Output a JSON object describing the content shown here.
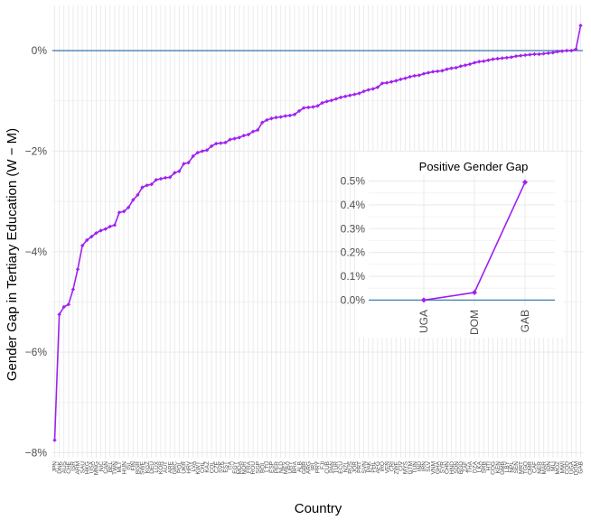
{
  "chart_data": [
    {
      "type": "line",
      "title": "",
      "xlabel": "Country",
      "ylabel": "Gender Gap in Tertiary Education (W − M)",
      "ylim": [
        -8.1,
        0.9
      ],
      "yticks": [
        0,
        -2,
        -4,
        -6,
        -8
      ],
      "ytick_labels": [
        "0%",
        "−2%",
        "−4%",
        "−6%",
        "−8%"
      ],
      "reference_line": 0,
      "grid": true,
      "colors": {
        "line": "#a020f0",
        "reference": "#4682b4",
        "grid": "#ebebeb"
      },
      "categories": [
        "JPN",
        "DNK",
        "AUS",
        "CHE",
        "ISR",
        "ARM",
        "SAU",
        "HKG",
        "USA",
        "MNG",
        "NIC",
        "CAN",
        "BEL",
        "TWN",
        "MLT",
        "HUN",
        "ISL",
        "FIN",
        "BGR",
        "SWE",
        "KGZ",
        "DEU",
        "LUX",
        "KOR",
        "AUT",
        "ARE",
        "GRC",
        "POL",
        "UKR",
        "HRV",
        "LVA",
        "KWT",
        "CHL",
        "KAZ",
        "COL",
        "CZE",
        "SVK",
        "EST",
        "ITA",
        "EGY",
        "MDA",
        "NOR",
        "FRA",
        "ROU",
        "SGP",
        "BOL",
        "LTU",
        "ESP",
        "PER",
        "NLD",
        "MEX",
        "URY",
        "BRA",
        "ALB",
        "GBR",
        "ARG",
        "IRL",
        "PRY",
        "FJI",
        "CUB",
        "PAN",
        "TUR",
        "ECU",
        "NZL",
        "RUS",
        "JOR",
        "PRT",
        "SVN",
        "PAK",
        "PHL",
        "AFG",
        "IRQ",
        "VEN",
        "CRI",
        "ZWE",
        "CIV",
        "MYS",
        "GTM",
        "TUN",
        "IND",
        "IRN",
        "SLV",
        "VNM",
        "GHA",
        "SYR",
        "CHN",
        "HND",
        "SDN",
        "BGD",
        "ZAF",
        "THA",
        "DZA",
        "LKA",
        "SRB",
        "HTI",
        "COG",
        "KEN",
        "GMB",
        "LBY",
        "NPL",
        "SEN",
        "MRT",
        "TGO",
        "CMR",
        "CAF",
        "NER",
        "MAR",
        "IDN",
        "MLI",
        "MOZ",
        "MWI",
        "COD",
        "UGA",
        "DOM",
        "GAB"
      ],
      "values": [
        -7.75,
        -5.25,
        -5.1,
        -5.05,
        -4.75,
        -4.35,
        -3.88,
        -3.77,
        -3.7,
        -3.63,
        -3.58,
        -3.55,
        -3.5,
        -3.47,
        -3.22,
        -3.2,
        -3.12,
        -2.97,
        -2.87,
        -2.72,
        -2.68,
        -2.66,
        -2.57,
        -2.55,
        -2.53,
        -2.52,
        -2.43,
        -2.4,
        -2.25,
        -2.23,
        -2.1,
        -2.03,
        -2.0,
        -1.98,
        -1.9,
        -1.85,
        -1.84,
        -1.83,
        -1.77,
        -1.75,
        -1.73,
        -1.69,
        -1.67,
        -1.61,
        -1.58,
        -1.43,
        -1.38,
        -1.35,
        -1.33,
        -1.32,
        -1.3,
        -1.29,
        -1.27,
        -1.2,
        -1.14,
        -1.13,
        -1.12,
        -1.1,
        -1.04,
        -1.01,
        -0.99,
        -0.96,
        -0.93,
        -0.91,
        -0.89,
        -0.87,
        -0.85,
        -0.81,
        -0.78,
        -0.76,
        -0.73,
        -0.65,
        -0.64,
        -0.62,
        -0.6,
        -0.57,
        -0.55,
        -0.52,
        -0.5,
        -0.49,
        -0.46,
        -0.44,
        -0.42,
        -0.41,
        -0.4,
        -0.37,
        -0.35,
        -0.34,
        -0.31,
        -0.29,
        -0.27,
        -0.24,
        -0.22,
        -0.21,
        -0.19,
        -0.17,
        -0.16,
        -0.15,
        -0.14,
        -0.13,
        -0.11,
        -0.1,
        -0.09,
        -0.08,
        -0.07,
        -0.07,
        -0.06,
        -0.05,
        -0.04,
        -0.02,
        -0.01,
        0.0,
        0.0,
        0.03,
        0.5
      ]
    },
    {
      "type": "line",
      "title": "Positive Gender Gap",
      "xlabel": "",
      "ylabel": "",
      "ylim": [
        -0.025,
        0.525
      ],
      "yticks": [
        0.0,
        0.1,
        0.2,
        0.3,
        0.4,
        0.5
      ],
      "ytick_labels": [
        "0.0%",
        "0.1%",
        "0.2%",
        "0.3%",
        "0.4%",
        "0.5%"
      ],
      "reference_line": 0,
      "grid": true,
      "colors": {
        "line": "#a020f0",
        "reference": "#4682b4",
        "grid": "#ebebeb"
      },
      "categories": [
        "UGA",
        "DOM",
        "GAB"
      ],
      "values": [
        0.0,
        0.032,
        0.495
      ]
    }
  ]
}
